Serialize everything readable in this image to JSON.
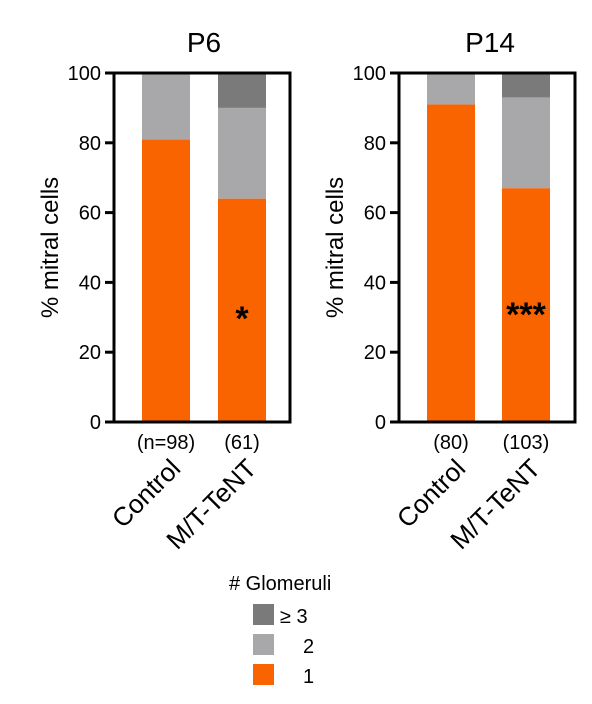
{
  "chart_data": [
    {
      "type": "bar",
      "stacked": true,
      "title": "P6",
      "ylabel": "% mitral cells",
      "ylim": [
        0,
        100
      ],
      "yticks": [
        "0",
        "20",
        "40",
        "60",
        "80",
        "100"
      ],
      "categories": [
        "Control",
        "M/T-TeNT"
      ],
      "n_labels": [
        "(n=98)",
        "(61)"
      ],
      "series": [
        {
          "name": "1",
          "values": [
            81,
            64
          ]
        },
        {
          "name": "2",
          "values": [
            19,
            26
          ]
        },
        {
          "name": "≥ 3",
          "values": [
            0,
            10
          ]
        }
      ],
      "annotations": [
        {
          "category": "M/T-TeNT",
          "text": "*"
        }
      ]
    },
    {
      "type": "bar",
      "stacked": true,
      "title": "P14",
      "ylabel": "% mitral cells",
      "ylim": [
        0,
        100
      ],
      "yticks": [
        "0",
        "20",
        "40",
        "60",
        "80",
        "100"
      ],
      "categories": [
        "Control",
        "M/T-TeNT"
      ],
      "n_labels": [
        "(80)",
        "(103)"
      ],
      "series": [
        {
          "name": "1",
          "values": [
            91,
            67
          ]
        },
        {
          "name": "2",
          "values": [
            9,
            26
          ]
        },
        {
          "name": "≥ 3",
          "values": [
            0,
            7
          ]
        }
      ],
      "annotations": [
        {
          "category": "M/T-TeNT",
          "text": "***"
        }
      ]
    }
  ],
  "legend": {
    "title": "# Glomeruli",
    "items": [
      {
        "label": "≥ 3",
        "color": "#7a7a7a"
      },
      {
        "label": "2",
        "color": "#a8a8aa"
      },
      {
        "label": "1",
        "color": "#fa6400"
      }
    ]
  },
  "colors": {
    "1": "#fa6400",
    "2": "#a8a8aa",
    "≥ 3": "#7a7a7a"
  }
}
